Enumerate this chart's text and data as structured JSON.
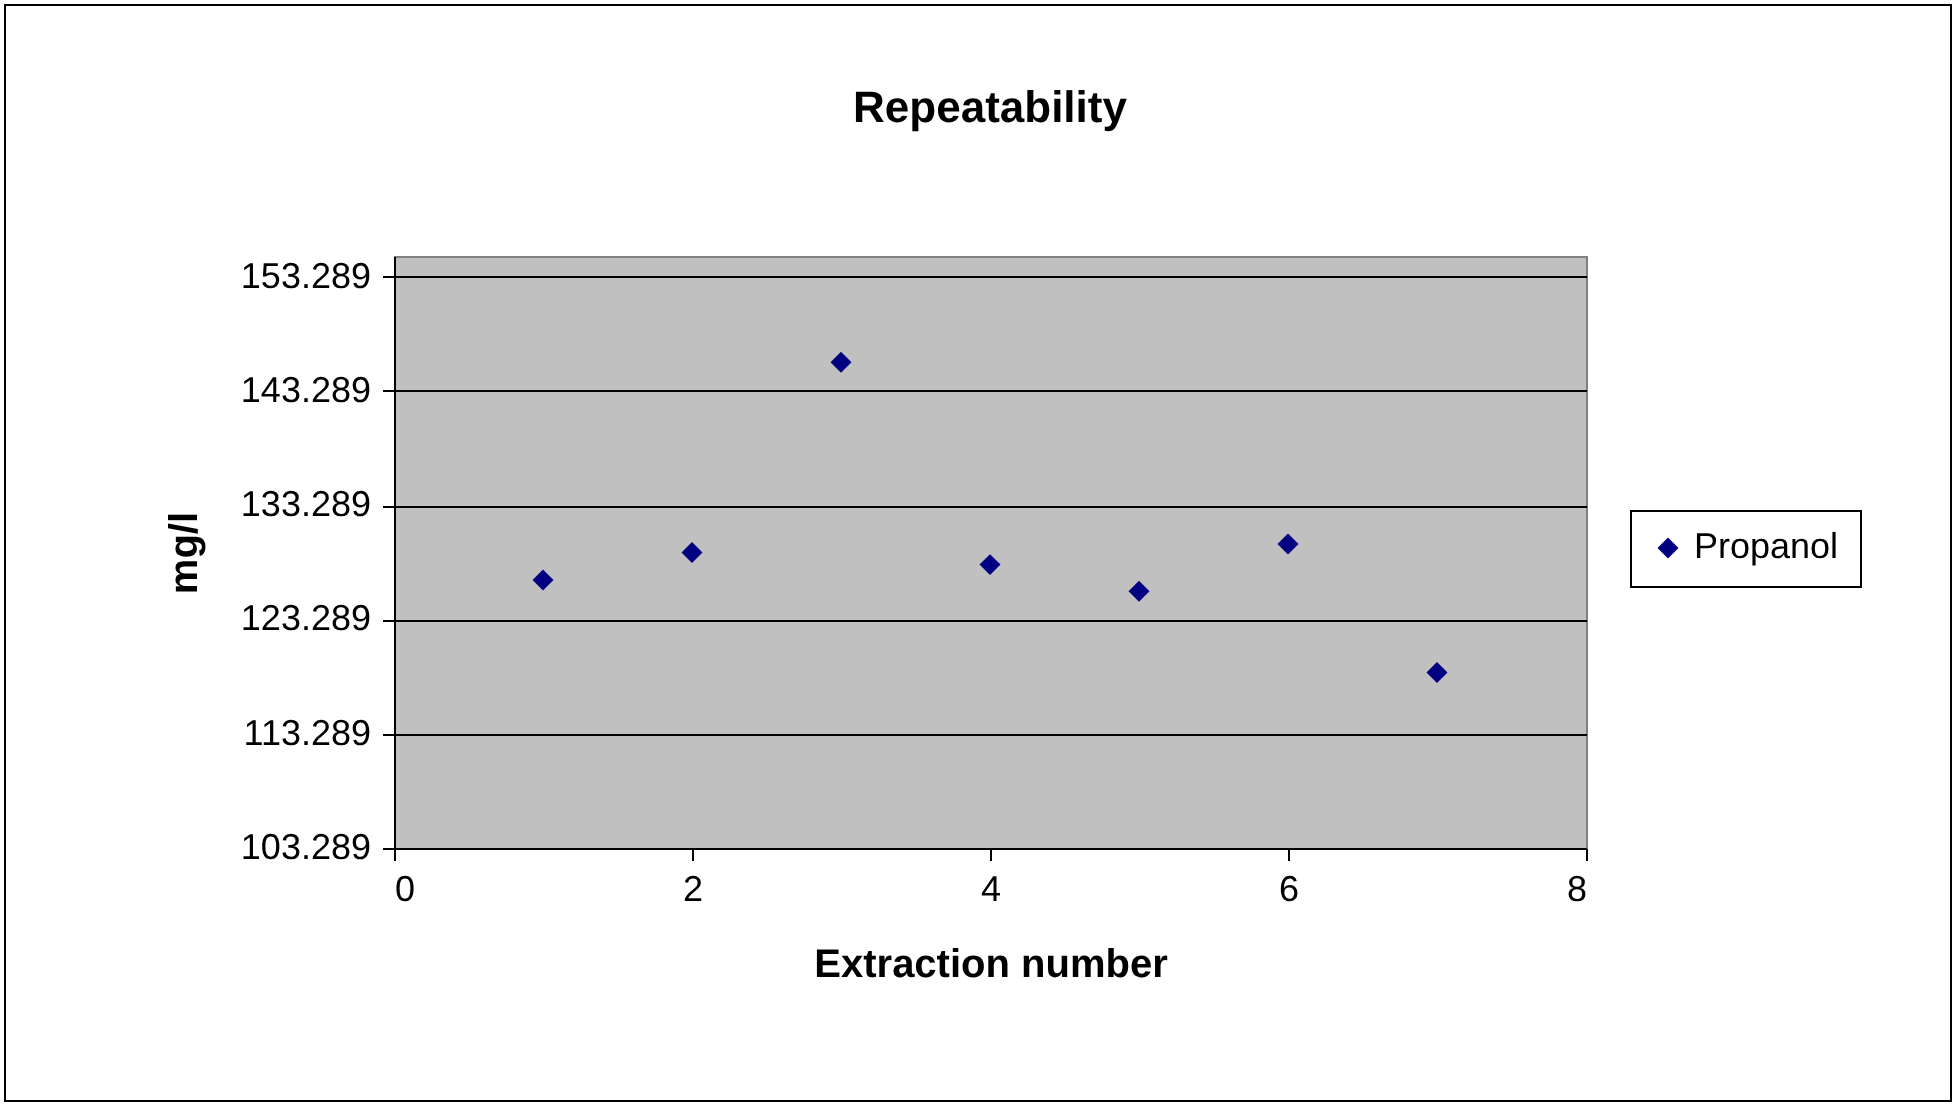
{
  "chart_data": {
    "type": "scatter",
    "title": "Repeatability",
    "xlabel": "Extraction number",
    "ylabel": "mg/l",
    "x": [
      1,
      2,
      3,
      4,
      5,
      6,
      7
    ],
    "series": [
      {
        "name": "Propanol",
        "color": "#000080",
        "values": [
          126.75,
          129.16,
          145.8,
          128.09,
          125.76,
          129.89,
          118.64
        ]
      }
    ],
    "xlim": [
      0,
      8
    ],
    "xticks": [
      0,
      2,
      4,
      6,
      8
    ],
    "ylim": [
      103.289,
      155.1
    ],
    "yticks": [
      103.289,
      113.289,
      123.289,
      133.289,
      143.289,
      153.289
    ],
    "grid": "y",
    "legend": "right",
    "marker": "diamond"
  }
}
